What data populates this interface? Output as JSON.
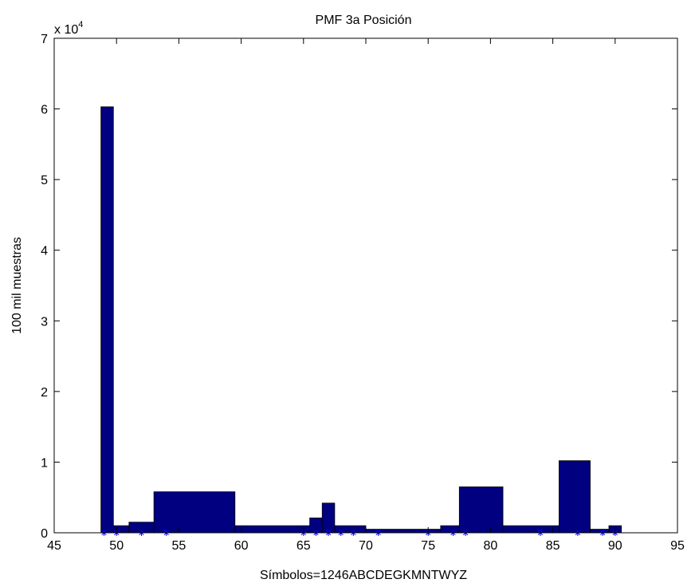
{
  "chart_data": {
    "type": "bar",
    "title": "PMF 3a Posición",
    "xlabel": "Símbolos=1246ABCDEGKMNTWYZ",
    "ylabel": "100 mil muestras",
    "y_multiplier_label": "x 10",
    "y_multiplier_exp": "4",
    "xlim": [
      45,
      95
    ],
    "ylim": [
      0,
      70000
    ],
    "xticks": [
      45,
      50,
      55,
      60,
      65,
      70,
      75,
      80,
      85,
      90,
      95
    ],
    "xtick_labels": [
      "45",
      "50",
      "55",
      "60",
      "65",
      "70",
      "75",
      "80",
      "85",
      "90",
      "95"
    ],
    "yticks": [
      0,
      10000,
      20000,
      30000,
      40000,
      50000,
      60000,
      70000
    ],
    "ytick_labels": [
      "0",
      "1",
      "2",
      "3",
      "4",
      "5",
      "6",
      "7"
    ],
    "grid": false,
    "colors": {
      "bar": "#000080",
      "marker": "#0000ff",
      "axes": "#000000"
    },
    "bins": [
      {
        "x0": 48.75,
        "x1": 49.75,
        "value": 60300
      },
      {
        "x0": 49.75,
        "x1": 51,
        "value": 1000
      },
      {
        "x0": 51,
        "x1": 53,
        "value": 1500
      },
      {
        "x0": 53,
        "x1": 59.5,
        "value": 5800
      },
      {
        "x0": 59.5,
        "x1": 65.5,
        "value": 1000
      },
      {
        "x0": 65.5,
        "x1": 66.5,
        "value": 2100
      },
      {
        "x0": 66.5,
        "x1": 67.5,
        "value": 4200
      },
      {
        "x0": 67.5,
        "x1": 70,
        "value": 1000
      },
      {
        "x0": 70,
        "x1": 76,
        "value": 500
      },
      {
        "x0": 76,
        "x1": 77.5,
        "value": 1000
      },
      {
        "x0": 77.5,
        "x1": 81,
        "value": 6500
      },
      {
        "x0": 81,
        "x1": 85.5,
        "value": 1000
      },
      {
        "x0": 85.5,
        "x1": 88,
        "value": 10200
      },
      {
        "x0": 88,
        "x1": 89.5,
        "value": 500
      },
      {
        "x0": 89.5,
        "x1": 90.5,
        "value": 1000
      }
    ],
    "markers_x": [
      49,
      50,
      52,
      54,
      65,
      66,
      67,
      68,
      69,
      71,
      75,
      77,
      78,
      84,
      87,
      89,
      90
    ],
    "markers_y": 0
  }
}
